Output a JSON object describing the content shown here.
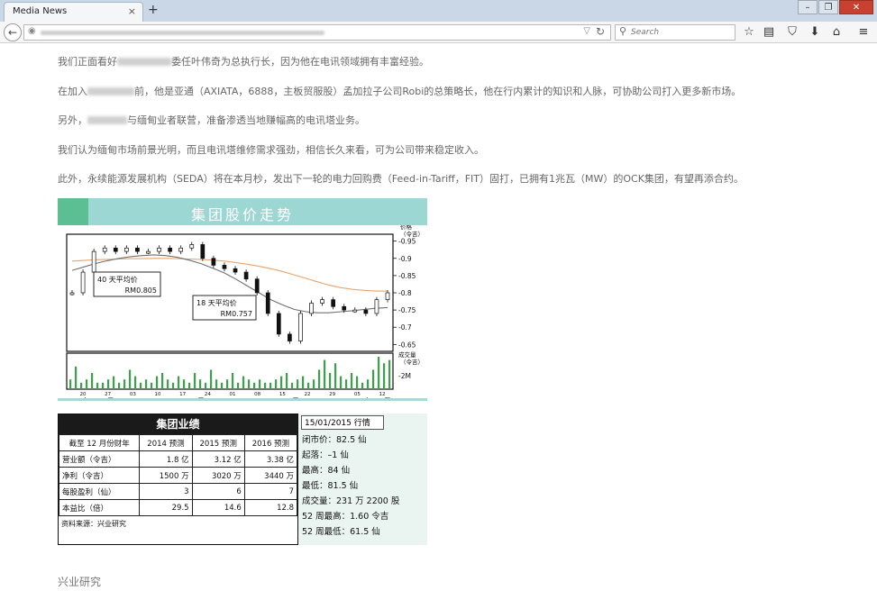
{
  "browser": {
    "tab_title": "Media News",
    "tab_close": "×",
    "new_tab": "+",
    "search_placeholder": "Search",
    "window_buttons": [
      "–",
      "❐",
      "✕"
    ]
  },
  "article": {
    "paragraphs": [
      {
        "before": "我们正面看好",
        "after": "委任叶伟奇为总执行长，因为他在电讯领域拥有丰富经验。"
      },
      {
        "before": "在加入",
        "after": "前，他是亚通（AXIATA，6888，主板贸服股）孟加拉子公司Robi的总策略长，他在行内累计的知识和人脉，可协助公司打入更多新市场。"
      },
      {
        "before": "另外，",
        "after": "与缅甸业者联营，准备渗透当地赚幅高的电讯塔业务。"
      },
      {
        "before": "",
        "after": "我们认为缅甸市场前景光明，而且电讯塔维修需求强劲，相信长久来看，可为公司带来稳定收入。"
      },
      {
        "before": "",
        "after": "此外，永续能源发展机构（SEDA）将在本月杪，发出下一轮的电力回购费（Feed-in-Tariff，FIT）固打，已拥有1兆瓦（MW）的OCK集团，有望再添合约。"
      }
    ],
    "footer": "兴业研究"
  },
  "chart_data": {
    "type": "line",
    "title": "集团股价走势",
    "price_axis_label": "价格\n（令吉）",
    "volume_axis_label": "成交量\n（令吉）",
    "price_ticks": [
      "0.95",
      "0.9",
      "0.85",
      "0.8",
      "0.75",
      "0.7",
      "0.65"
    ],
    "volume_tick": "2M",
    "ylim": [
      0.63,
      0.97
    ],
    "x_ticks": [
      "20",
      "27",
      "03",
      "10",
      "17",
      "24",
      "01",
      "08",
      "15",
      "22",
      "29",
      "05",
      "12"
    ],
    "month_labels": [
      "2014 年 10 月",
      "11 月",
      "12 月",
      "2015 年 1 月"
    ],
    "annotations": [
      {
        "label": "40 天平均价",
        "value": "RM0.805"
      },
      {
        "label": "18 天平均价",
        "value": "RM0.757"
      }
    ],
    "series": [
      {
        "name": "40 天平均价",
        "color": "#e8a46a",
        "values": [
          0.892,
          0.894,
          0.896,
          0.897,
          0.898,
          0.899,
          0.899,
          0.9,
          0.9,
          0.899,
          0.898,
          0.897,
          0.895,
          0.892,
          0.888,
          0.883,
          0.877,
          0.87,
          0.862,
          0.852,
          0.842,
          0.832,
          0.822,
          0.815,
          0.81,
          0.807,
          0.805,
          0.805
        ]
      },
      {
        "name": "18 天平均价",
        "color": "#707070",
        "values": [
          0.865,
          0.875,
          0.885,
          0.893,
          0.9,
          0.905,
          0.908,
          0.91,
          0.908,
          0.903,
          0.895,
          0.885,
          0.872,
          0.858,
          0.84,
          0.82,
          0.8,
          0.78,
          0.765,
          0.752,
          0.745,
          0.742,
          0.742,
          0.745,
          0.748,
          0.752,
          0.755,
          0.757
        ]
      },
      {
        "name": "price",
        "color": "#111111",
        "values": [
          0.8,
          0.86,
          0.92,
          0.93,
          0.92,
          0.93,
          0.92,
          0.92,
          0.93,
          0.92,
          0.93,
          0.94,
          0.9,
          0.88,
          0.87,
          0.86,
          0.84,
          0.8,
          0.74,
          0.68,
          0.66,
          0.74,
          0.77,
          0.78,
          0.76,
          0.75,
          0.75,
          0.74,
          0.78,
          0.8
        ]
      }
    ],
    "volume_colors": [
      "#3aa34a"
    ],
    "volume_values": [
      0.3,
      0.7,
      0.2,
      0.3,
      0.5,
      0.2,
      0.2,
      0.3,
      0.4,
      0.2,
      0.3,
      0.6,
      0.4,
      0.2,
      0.3,
      0.2,
      0.4,
      0.5,
      0.3,
      0.2,
      0.4,
      0.3,
      0.2,
      0.5,
      0.3,
      0.2,
      0.6,
      0.3,
      0.2,
      0.3,
      0.5,
      0.2,
      0.4,
      0.3,
      0.2,
      0.3,
      0.2,
      0.2,
      0.3,
      0.4,
      0.5,
      0.2,
      0.3,
      0.4,
      0.2,
      0.3,
      0.6,
      0.9,
      0.5,
      0.8,
      0.4,
      0.3,
      0.5,
      0.4,
      0.2,
      0.3,
      0.6,
      1.0,
      0.8,
      0.9
    ]
  },
  "results": {
    "title": "集团业绩",
    "headers": [
      "截至 12 月份财年",
      "2014 预测",
      "2015 预测",
      "2016 预测"
    ],
    "rows": [
      [
        "营业额（令吉）",
        "1.8 亿",
        "3.12 亿",
        "3.38 亿"
      ],
      [
        "净利（令吉）",
        "1500 万",
        "3020 万",
        "3440 万"
      ],
      [
        "每股盈利（仙）",
        "3",
        "6",
        "7"
      ],
      [
        "本益比（倍）",
        "29.5",
        "14.6",
        "12.8"
      ]
    ],
    "source": "资料来源：兴业研究"
  },
  "market": {
    "date": "15/01/2015 行情",
    "lines": [
      "闭市价：82.5 仙",
      "起落：–1 仙",
      "最高：84 仙",
      "最低：81.5 仙",
      "成交量：231 万 2200 股",
      "52 周最高：1.60 令吉",
      "52 周最低：61.5 仙"
    ]
  }
}
